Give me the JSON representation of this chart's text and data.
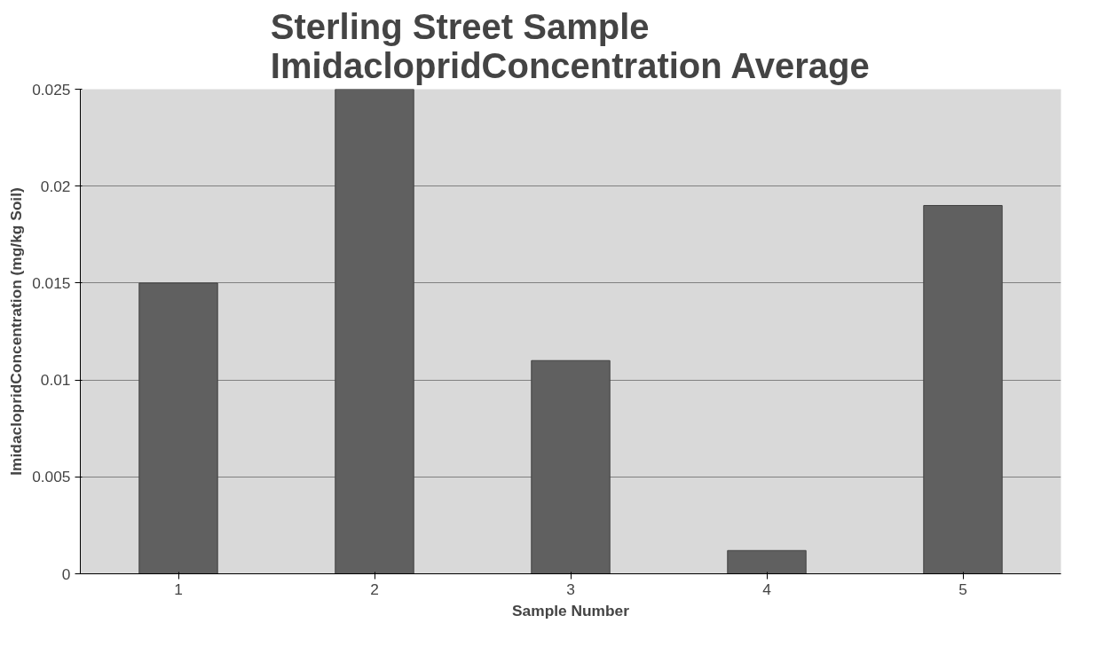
{
  "chart_data": {
    "type": "bar",
    "title": "Sterling Street Sample\nImidaclopridConcentration Average",
    "xlabel": "Sample Number",
    "ylabel": "ImidaclopridConcentration (mg/kg Soil)",
    "categories": [
      "1",
      "2",
      "3",
      "4",
      "5"
    ],
    "values": [
      0.015,
      0.025,
      0.011,
      0.0012,
      0.019
    ],
    "color": "#606060",
    "ylim": [
      0,
      0.025
    ],
    "yticks": [
      0,
      0.005,
      0.01,
      0.015,
      0.02,
      0.025
    ],
    "grid": "y"
  }
}
